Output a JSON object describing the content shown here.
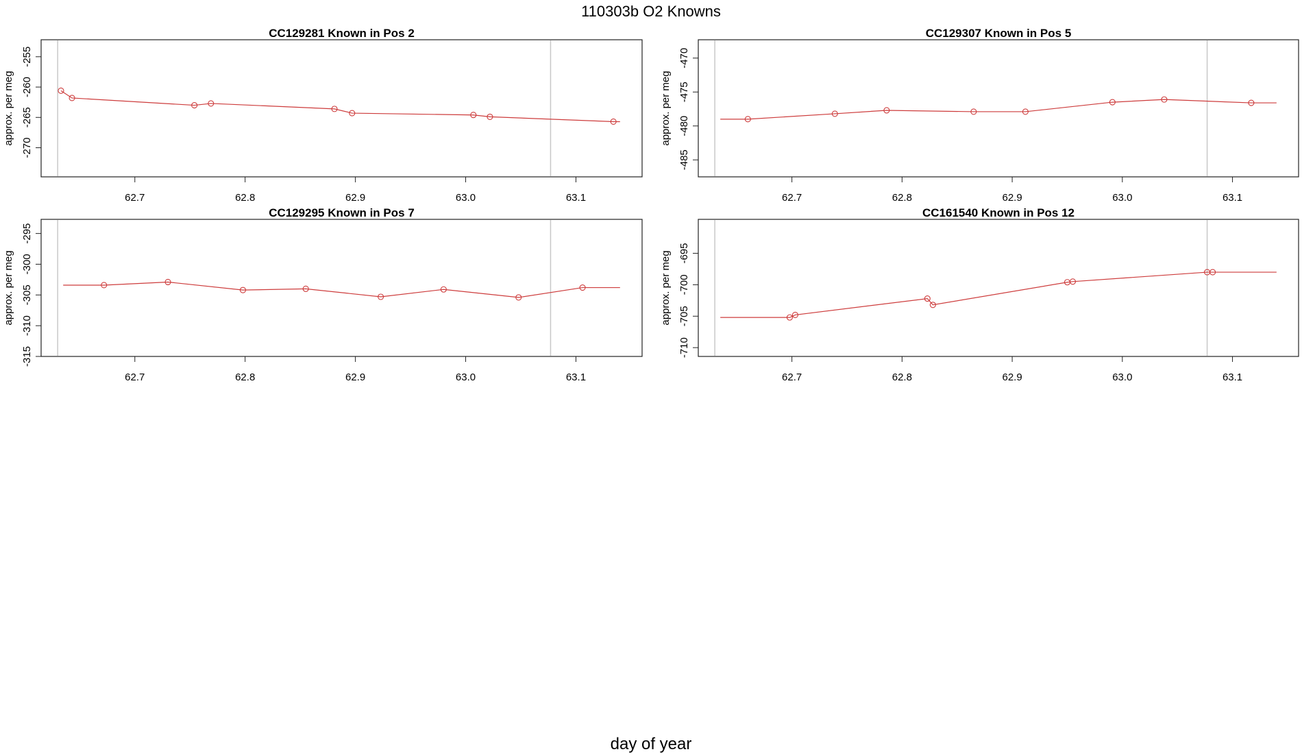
{
  "figure": {
    "title": "110303b   O2 Knowns",
    "xlabel": "day of year"
  },
  "colors": {
    "series": "#cd3b3b",
    "vline": "#c8c8c8",
    "frame": "#222222"
  },
  "chart_data": [
    {
      "type": "line",
      "title": "CC129281    Known in Pos 2",
      "ylabel": "approx. per meg",
      "xlim": [
        62.615,
        63.16
      ],
      "ylim": [
        -274.8,
        -252.2
      ],
      "x_ticks": [
        62.7,
        62.8,
        62.9,
        63.0,
        63.1
      ],
      "x_tick_labels": [
        "62.7",
        "62.8",
        "62.9",
        "63.0",
        "63.1"
      ],
      "y_ticks": [
        -270,
        -265,
        -260,
        -255
      ],
      "y_tick_labels": [
        "-270",
        "-265",
        "-260",
        "-255"
      ],
      "vlines": [
        62.63,
        63.077
      ],
      "line_extension": [
        null,
        63.14
      ],
      "points": {
        "x": [
          62.633,
          62.643,
          62.754,
          62.769,
          62.881,
          62.897,
          63.007,
          63.022,
          63.134
        ],
        "y": [
          -260.6,
          -261.8,
          -263.0,
          -262.7,
          -263.6,
          -264.3,
          -264.6,
          -264.9,
          -265.7
        ]
      }
    },
    {
      "type": "line",
      "title": "CC129307    Known in Pos 5",
      "ylabel": "approx. per meg",
      "xlim": [
        62.615,
        63.16
      ],
      "ylim": [
        -487.5,
        -467.3
      ],
      "x_ticks": [
        62.7,
        62.8,
        62.9,
        63.0,
        63.1
      ],
      "x_tick_labels": [
        "62.7",
        "62.8",
        "62.9",
        "63.0",
        "63.1"
      ],
      "y_ticks": [
        -485,
        -480,
        -475,
        -470
      ],
      "y_tick_labels": [
        "-485",
        "-480",
        "-475",
        "-470"
      ],
      "vlines": [
        62.63,
        63.077
      ],
      "line_extension": [
        62.635,
        63.14
      ],
      "points": {
        "x": [
          62.66,
          62.739,
          62.786,
          62.865,
          62.912,
          62.991,
          63.038,
          63.117
        ],
        "y": [
          -479.0,
          -478.2,
          -477.7,
          -477.9,
          -477.9,
          -476.5,
          -476.1,
          -476.6
        ]
      }
    },
    {
      "type": "line",
      "title": "CC129295    Known in Pos 7",
      "ylabel": "approx. per meg",
      "xlim": [
        62.615,
        63.16
      ],
      "ylim": [
        -315.0,
        -292.7
      ],
      "x_ticks": [
        62.7,
        62.8,
        62.9,
        63.0,
        63.1
      ],
      "x_tick_labels": [
        "62.7",
        "62.8",
        "62.9",
        "63.0",
        "63.1"
      ],
      "y_ticks": [
        -315,
        -310,
        -305,
        -300,
        -295
      ],
      "y_tick_labels": [
        "-315",
        "-310",
        "-305",
        "-300",
        "-295"
      ],
      "vlines": [
        62.63,
        63.077
      ],
      "line_extension": [
        62.635,
        63.14
      ],
      "points": {
        "x": [
          62.672,
          62.73,
          62.798,
          62.855,
          62.923,
          62.98,
          63.048,
          63.106
        ],
        "y": [
          -303.4,
          -302.9,
          -304.2,
          -304.0,
          -305.3,
          -304.1,
          -305.4,
          -303.8
        ]
      }
    },
    {
      "type": "line",
      "title": "CC161540    Known in Pos 12",
      "ylabel": "approx. per meg",
      "xlim": [
        62.615,
        63.16
      ],
      "ylim": [
        -711.4,
        -689.6
      ],
      "x_ticks": [
        62.7,
        62.8,
        62.9,
        63.0,
        63.1
      ],
      "x_tick_labels": [
        "62.7",
        "62.8",
        "62.9",
        "63.0",
        "63.1"
      ],
      "y_ticks": [
        -710,
        -705,
        -700,
        -695
      ],
      "y_tick_labels": [
        "-710",
        "-705",
        "-700",
        "-695"
      ],
      "vlines": [
        62.63,
        63.077
      ],
      "line_extension": [
        62.635,
        63.14
      ],
      "points": {
        "x": [
          62.698,
          62.703,
          62.823,
          62.828,
          62.95,
          62.955,
          63.077,
          63.082
        ],
        "y": [
          -705.2,
          -704.8,
          -702.2,
          -703.2,
          -699.6,
          -699.5,
          -698.0,
          -698.0
        ]
      }
    }
  ]
}
